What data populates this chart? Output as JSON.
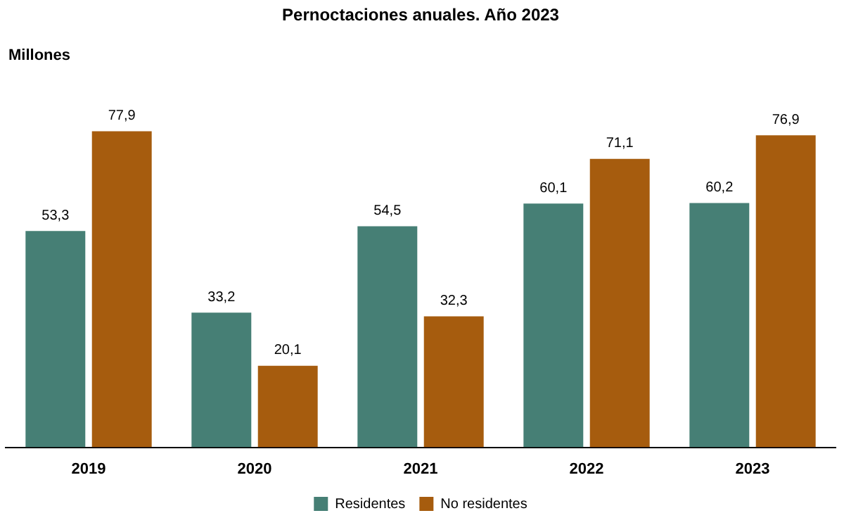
{
  "chart_data": {
    "type": "bar",
    "title": "Pernoctaciones anuales. Año 2023",
    "ylabel": "Millones",
    "categories": [
      "2019",
      "2020",
      "2021",
      "2022",
      "2023"
    ],
    "series": [
      {
        "name": "Residentes",
        "color": "#467f75",
        "values": [
          53.3,
          33.2,
          54.5,
          60.1,
          60.2
        ],
        "value_labels": [
          "53,3",
          "33,2",
          "54,5",
          "60,1",
          "60,2"
        ]
      },
      {
        "name": "No residentes",
        "color": "#a65c0e",
        "values": [
          77.9,
          20.1,
          32.3,
          71.1,
          76.9
        ],
        "value_labels": [
          "77,9",
          "20,1",
          "32,3",
          "71,1",
          "76,9"
        ]
      }
    ],
    "grid": false,
    "legend": "bottom",
    "tick_labels": "x"
  }
}
